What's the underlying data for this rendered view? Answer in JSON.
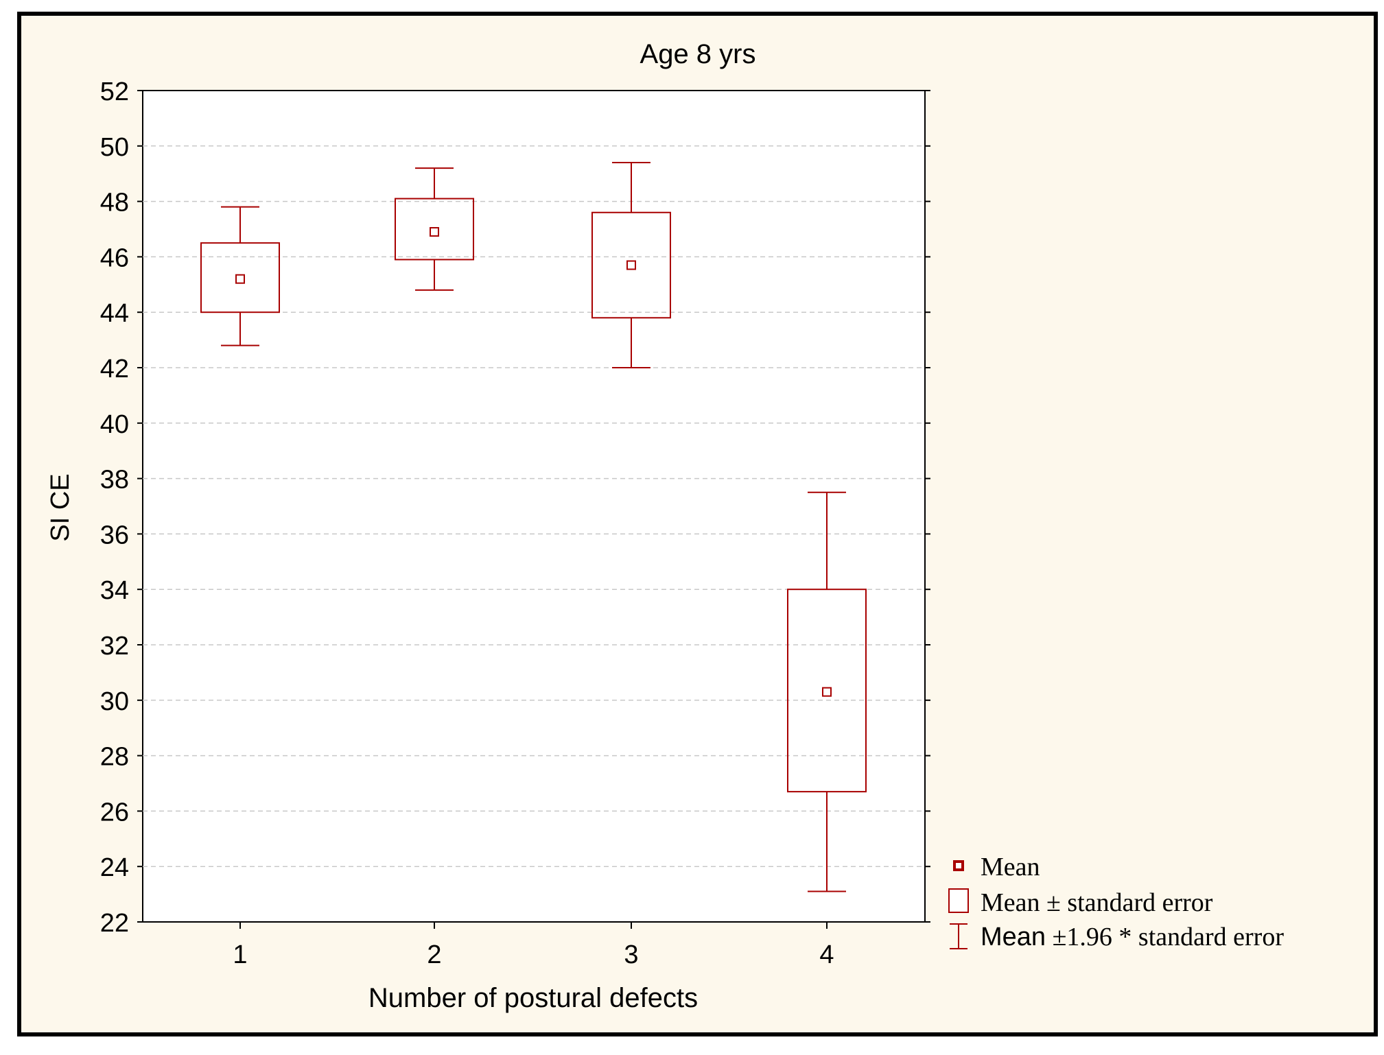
{
  "chart_data": {
    "type": "box",
    "title": "Age 8 yrs",
    "xlabel": "Number of postural defects",
    "ylabel": "SI CE",
    "categories": [
      "1",
      "2",
      "3",
      "4"
    ],
    "ylim": [
      22,
      52
    ],
    "yticks": [
      "22",
      "24",
      "26",
      "28",
      "30",
      "32",
      "34",
      "36",
      "38",
      "40",
      "42",
      "44",
      "46",
      "48",
      "50",
      "52"
    ],
    "grid": true,
    "series": [
      {
        "name": "Mean",
        "values": [
          45.2,
          46.9,
          45.7,
          30.3
        ]
      },
      {
        "name": "Mean ± standard error",
        "lower": [
          44.0,
          45.9,
          43.8,
          26.7
        ],
        "upper": [
          46.5,
          48.1,
          47.6,
          34.0
        ]
      },
      {
        "name": "Mean ±1.96 * standard error",
        "lower": [
          42.8,
          44.8,
          42.0,
          23.1
        ],
        "upper": [
          47.8,
          49.2,
          49.4,
          37.5
        ]
      }
    ],
    "legend": {
      "position": "bottom-right",
      "items": [
        {
          "text": "Mean",
          "marker": "mean-point"
        },
        {
          "text": "Mean ± standard error",
          "marker": "box"
        },
        {
          "text": "Mean ±1.96 * standard error",
          "prefix": "Mean",
          "rest": " ±1.96 * standard error",
          "marker": "whisker"
        }
      ]
    },
    "colors": {
      "background": "#fdf8ec",
      "plot_background": "#ffffff",
      "series": "#a80000",
      "axis": "#000000",
      "grid": "#c8c8c8"
    }
  }
}
